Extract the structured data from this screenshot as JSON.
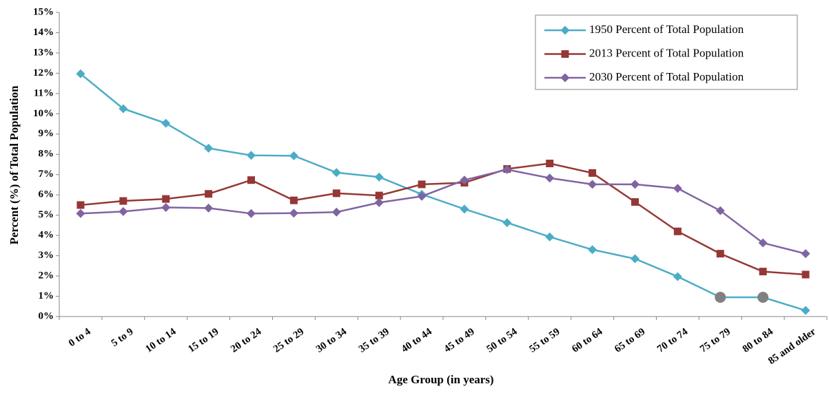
{
  "chart_data": {
    "type": "line",
    "x_label": "Age Group (in years)",
    "y_label": "Percent (%) of  Total Population",
    "categories": [
      "0 to 4",
      "5 to 9",
      "10 to 14",
      "15 to 19",
      "20 to 24",
      "25 to 29",
      "30 to 34",
      "35 to 39",
      "40 to 44",
      "45 to 49",
      "50 to 54",
      "55 to 59",
      "60 to 64",
      "65 to 69",
      "70 to 74",
      "75 to 79",
      "80 to 84",
      "85 and older"
    ],
    "series": [
      {
        "name": "1950 Percent of Total Population",
        "color": "#4bacc6",
        "marker": "diamond",
        "values": [
          11.97,
          10.25,
          9.53,
          8.3,
          7.95,
          7.93,
          7.1,
          6.88,
          6.03,
          5.3,
          4.63,
          3.93,
          3.3,
          2.85,
          1.97,
          0.95,
          0.95,
          0.3
        ],
        "highlight_indices": [
          15,
          16
        ],
        "highlight_color": "#808080"
      },
      {
        "name": "2013 Percent of Total Population",
        "color": "#953735",
        "marker": "square",
        "values": [
          5.5,
          5.7,
          5.8,
          6.05,
          6.73,
          5.73,
          6.08,
          5.97,
          6.52,
          6.6,
          7.28,
          7.55,
          7.08,
          5.65,
          4.2,
          3.1,
          2.22,
          2.07
        ]
      },
      {
        "name": "2030 Percent of Total Population",
        "color": "#8064a2",
        "marker": "diamond",
        "values": [
          5.08,
          5.18,
          5.38,
          5.35,
          5.08,
          5.1,
          5.15,
          5.62,
          5.93,
          6.73,
          7.25,
          6.83,
          6.52,
          6.52,
          6.32,
          5.22,
          3.63,
          3.1
        ]
      }
    ],
    "ylim": [
      0,
      15
    ],
    "yticks": [
      {
        "value": 0,
        "label": "0%"
      },
      {
        "value": 1,
        "label": "1%"
      },
      {
        "value": 2,
        "label": "2%"
      },
      {
        "value": 3,
        "label": "3%"
      },
      {
        "value": 4,
        "label": "4%"
      },
      {
        "value": 5,
        "label": "5%"
      },
      {
        "value": 6,
        "label": "6%"
      },
      {
        "value": 7,
        "label": "7%"
      },
      {
        "value": 8,
        "label": "8%"
      },
      {
        "value": 9,
        "label": "9%"
      },
      {
        "value": 10,
        "label": "10%"
      },
      {
        "value": 11,
        "label": "11%"
      },
      {
        "value": 12,
        "label": "12%"
      },
      {
        "value": 13,
        "label": "13%"
      },
      {
        "value": 14,
        "label": "14%"
      },
      {
        "value": 15,
        "label": "15%"
      }
    ],
    "grid": false,
    "legend_position": "top-right"
  }
}
